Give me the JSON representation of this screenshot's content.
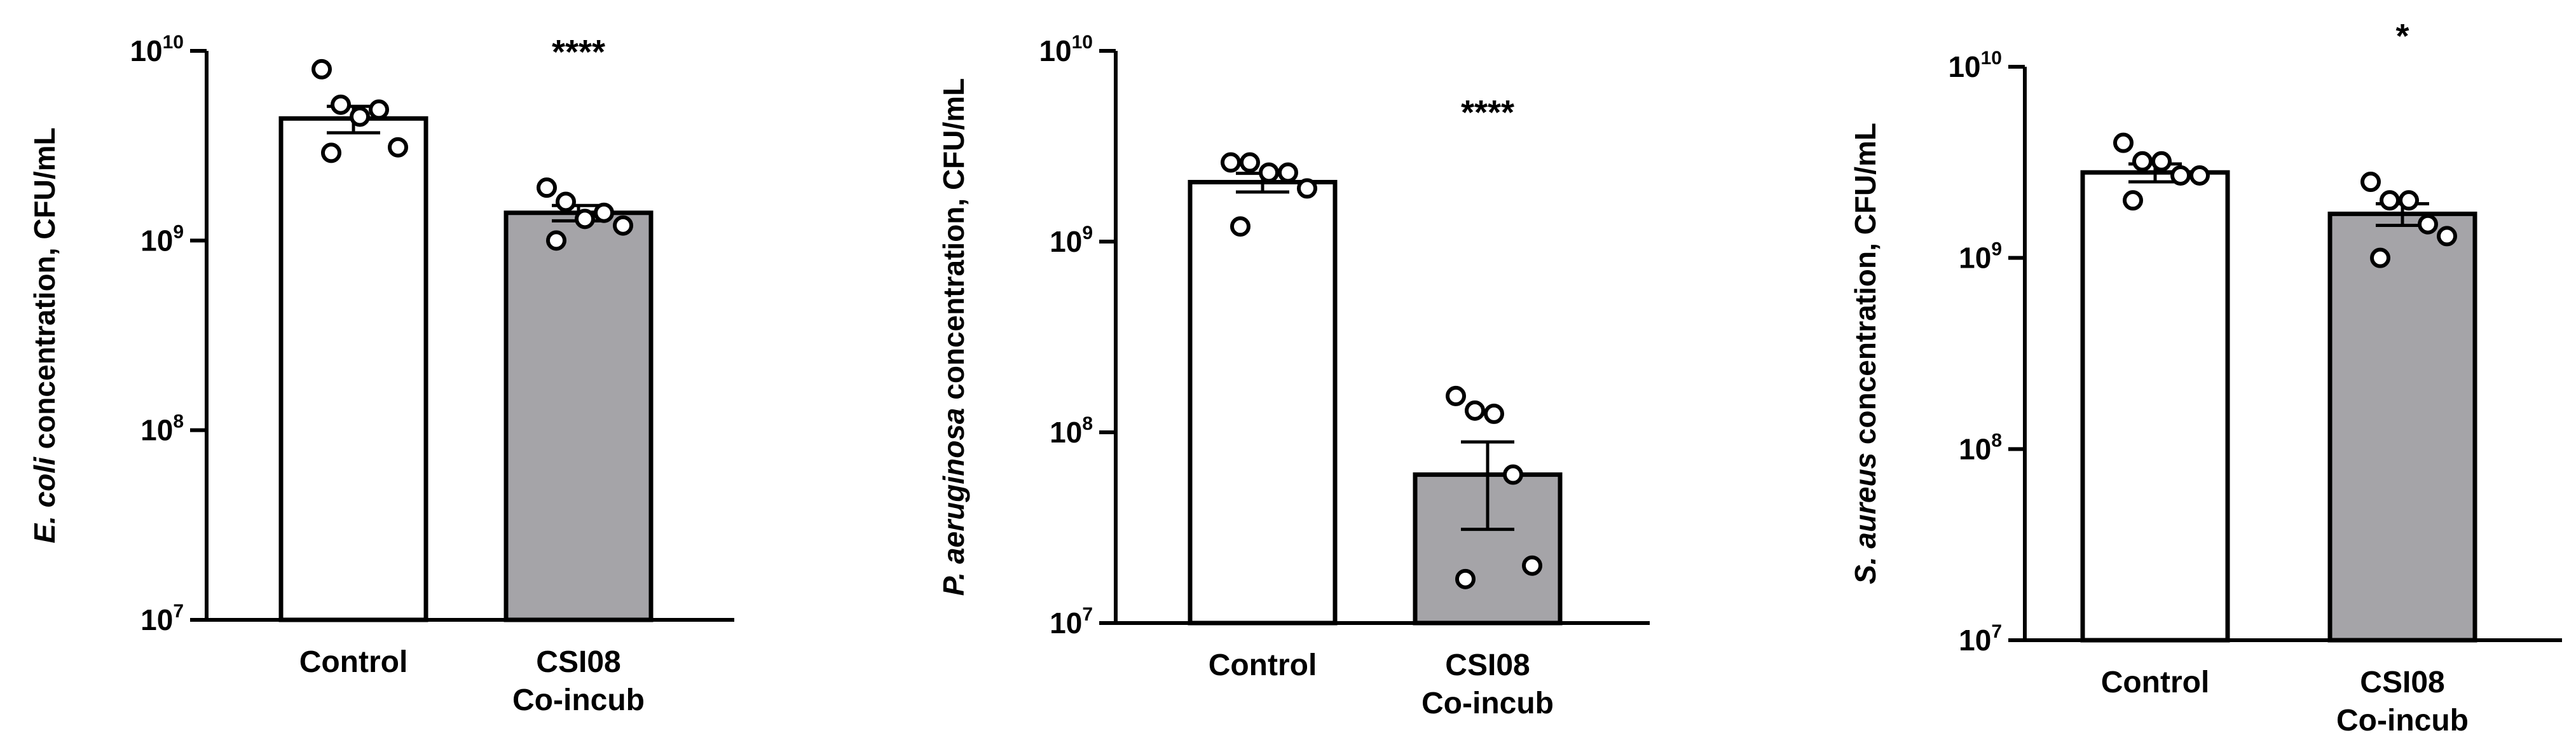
{
  "chart_data": [
    {
      "type": "bar",
      "yscale": "log",
      "ylim": [
        10000000,
        10000000000
      ],
      "ylabel_italic": "E. coli",
      "ylabel_rest": " concentration, CFU/mL",
      "yticks": [
        {
          "base": "10",
          "exp": "7",
          "value": 10000000
        },
        {
          "base": "10",
          "exp": "8",
          "value": 100000000
        },
        {
          "base": "10",
          "exp": "9",
          "value": 1000000000
        },
        {
          "base": "10",
          "exp": "10",
          "value": 10000000000
        }
      ],
      "categories": [
        {
          "lines": [
            "Control"
          ],
          "fill": "#ffffff"
        },
        {
          "lines": [
            "CSI08",
            "Co-incub"
          ],
          "fill": "#a5a4a8"
        }
      ],
      "values": [
        4400000000,
        1400000000
      ],
      "sem": [
        700000000,
        130000000
      ],
      "points": [
        [
          8000000000,
          5200000000,
          4500000000,
          4900000000,
          3100000000,
          2900000000
        ],
        [
          1900000000,
          1600000000,
          1300000000,
          1400000000,
          1200000000,
          1000000000
        ]
      ],
      "significance": "****"
    },
    {
      "type": "bar",
      "yscale": "log",
      "ylim": [
        10000000,
        10000000000
      ],
      "ylabel_italic": "P. aeruginosa",
      "ylabel_rest": " concentration, CFU/mL",
      "yticks": [
        {
          "base": "10",
          "exp": "7",
          "value": 10000000
        },
        {
          "base": "10",
          "exp": "8",
          "value": 100000000
        },
        {
          "base": "10",
          "exp": "9",
          "value": 1000000000
        },
        {
          "base": "10",
          "exp": "10",
          "value": 10000000000
        }
      ],
      "categories": [
        {
          "lines": [
            "Control"
          ],
          "fill": "#ffffff"
        },
        {
          "lines": [
            "CSI08",
            "Co-incub"
          ],
          "fill": "#a5a4a8"
        }
      ],
      "values": [
        2050000000,
        60000000
      ],
      "sem": [
        230000000,
        29000000
      ],
      "points": [
        [
          2600000000,
          2600000000,
          2300000000,
          2300000000,
          1900000000,
          1200000000
        ],
        [
          155000000,
          130000000,
          125000000,
          60000000,
          20000000,
          17000000
        ]
      ],
      "significance": "****"
    },
    {
      "type": "bar",
      "yscale": "log",
      "ylim": [
        10000000,
        10000000000
      ],
      "ylabel_italic": "S. aureus",
      "ylabel_rest": " concentration, CFU/mL",
      "yticks": [
        {
          "base": "10",
          "exp": "7",
          "value": 10000000
        },
        {
          "base": "10",
          "exp": "8",
          "value": 100000000
        },
        {
          "base": "10",
          "exp": "9",
          "value": 1000000000
        },
        {
          "base": "10",
          "exp": "10",
          "value": 10000000000
        }
      ],
      "categories": [
        {
          "lines": [
            "Control"
          ],
          "fill": "#ffffff"
        },
        {
          "lines": [
            "CSI08",
            "Co-incub"
          ],
          "fill": "#a5a4a8"
        }
      ],
      "values": [
        2800000000,
        1700000000
      ],
      "sem": [
        300000000,
        220000000
      ],
      "points": [
        [
          4000000000,
          3200000000,
          3200000000,
          2700000000,
          2700000000,
          2000000000
        ],
        [
          2500000000,
          2000000000,
          2000000000,
          1500000000,
          1300000000,
          1000000000
        ]
      ],
      "significance": "*"
    }
  ]
}
